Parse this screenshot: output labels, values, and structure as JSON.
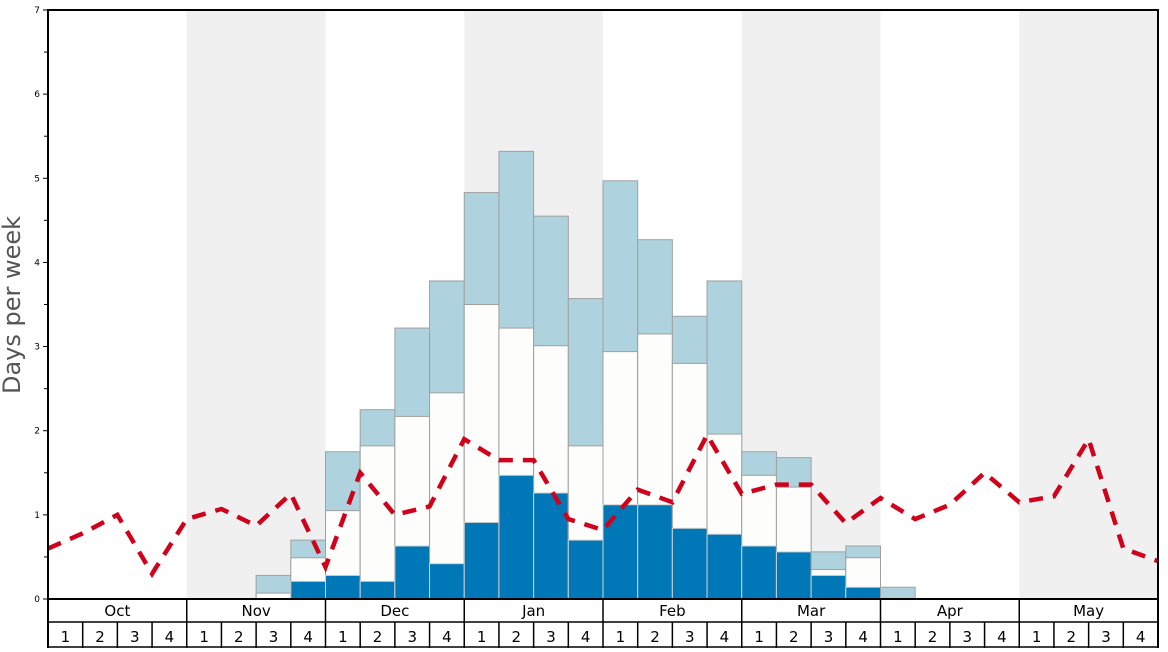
{
  "chart_data": {
    "type": "bar",
    "title": "",
    "ylabel": "Days per week",
    "xlabel": "",
    "ylim": [
      0,
      7
    ],
    "yticks": [
      "0",
      "1",
      "2",
      "3",
      "4",
      "5",
      "6",
      "7"
    ],
    "months": [
      "Oct",
      "Nov",
      "Dec",
      "Jan",
      "Feb",
      "Mar",
      "Apr",
      "May"
    ],
    "week_labels": [
      "1",
      "2",
      "3",
      "4"
    ],
    "shaded_months": [
      "Nov",
      "Jan",
      "Mar",
      "May"
    ],
    "stack_note": "cumulative heights: dark (bottom), white (middle top), light (total top)",
    "series": [
      {
        "name": "dark",
        "color": "#0077b6",
        "values": [
          0,
          0,
          0,
          0,
          0,
          0,
          0,
          0.21,
          0.28,
          0.21,
          0.63,
          0.42,
          0.91,
          1.47,
          1.26,
          0.7,
          1.12,
          1.12,
          0.84,
          0.77,
          0.63,
          0.56,
          0.28,
          0.14,
          0,
          0,
          0,
          0,
          0,
          0,
          0,
          0
        ]
      },
      {
        "name": "white",
        "color": "#fdfdfb",
        "values": [
          0,
          0,
          0,
          0,
          0,
          0,
          0.07,
          0.49,
          1.05,
          1.82,
          2.17,
          2.45,
          3.5,
          3.22,
          3.01,
          1.82,
          2.94,
          3.15,
          2.8,
          1.96,
          1.47,
          1.33,
          0.35,
          0.49,
          0,
          0,
          0,
          0,
          0,
          0,
          0,
          0
        ]
      },
      {
        "name": "light",
        "color": "#aed3df",
        "values": [
          0,
          0,
          0,
          0,
          0,
          0,
          0.28,
          0.7,
          1.75,
          2.25,
          3.22,
          3.78,
          4.83,
          5.32,
          4.55,
          3.57,
          4.97,
          4.27,
          3.36,
          3.78,
          1.75,
          1.68,
          0.56,
          0.63,
          0.14,
          0,
          0,
          0,
          0,
          0,
          0,
          0
        ]
      }
    ],
    "line": {
      "name": "average",
      "color": "#d0021b",
      "values": [
        0.6,
        0.78,
        1.0,
        0.3,
        0.95,
        1.07,
        0.87,
        1.25,
        0.38,
        1.5,
        1.0,
        1.1,
        1.9,
        1.65,
        1.65,
        0.95,
        0.82,
        1.3,
        1.15,
        1.95,
        1.25,
        1.36,
        1.36,
        0.9,
        1.2,
        0.95,
        1.12,
        1.5,
        1.15,
        1.22,
        1.9,
        0.6,
        0.45
      ]
    },
    "grid": false,
    "legend": "none"
  }
}
